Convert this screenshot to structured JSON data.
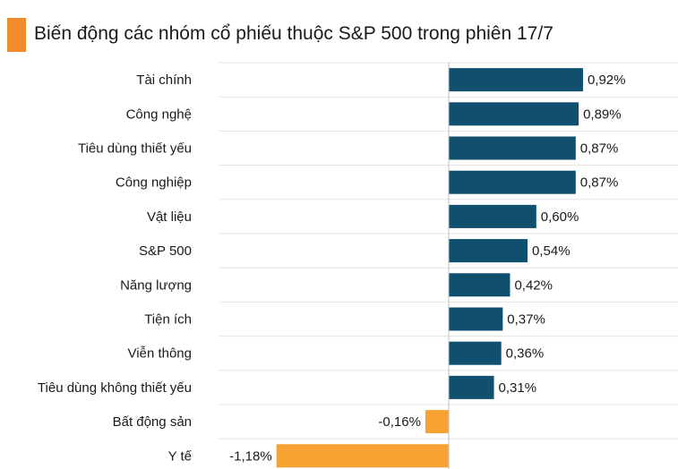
{
  "chart_data": {
    "type": "bar",
    "orientation": "horizontal",
    "title": "Biến động các nhóm cổ phiếu thuộc S&P 500 trong phiên 17/7",
    "categories": [
      "Tài chính",
      "Công nghệ",
      "Tiêu dùng thiết yếu",
      "Công nghiệp",
      "Vật liệu",
      "S&P 500",
      "Năng lượng",
      "Tiện ích",
      "Viễn thông",
      "Tiêu dùng không thiết yếu",
      "Bất động sản",
      "Y tế"
    ],
    "values": [
      0.92,
      0.89,
      0.87,
      0.87,
      0.6,
      0.54,
      0.42,
      0.37,
      0.36,
      0.31,
      -0.16,
      -1.18
    ],
    "value_labels": [
      "0,92%",
      "0,89%",
      "0,87%",
      "0,87%",
      "0,60%",
      "0,54%",
      "0,42%",
      "0,37%",
      "0,36%",
      "0,31%",
      "-0,16%",
      "-1,18%"
    ],
    "xlim": [
      -1.18,
      0.92
    ],
    "grid": true,
    "colors": {
      "positive": "#10506e",
      "negative": "#f7a333",
      "accent": "#f28b2d",
      "grid": "#e3e3e3",
      "axis": "#bfbfbf"
    }
  }
}
